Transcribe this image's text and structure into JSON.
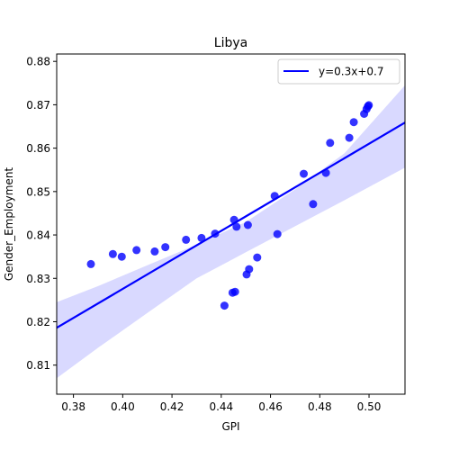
{
  "chart_data": {
    "type": "scatter",
    "title": "Libya",
    "xlabel": "GPI",
    "ylabel": "Gender_Employment",
    "xlim": [
      0.3732,
      0.5146
    ],
    "ylim": [
      0.8033,
      0.8817
    ],
    "xticks": [
      0.38,
      0.4,
      0.42,
      0.44,
      0.46,
      0.48,
      0.5
    ],
    "xtick_labels": [
      "0.38",
      "0.40",
      "0.42",
      "0.44",
      "0.46",
      "0.48",
      "0.50"
    ],
    "yticks": [
      0.81,
      0.82,
      0.83,
      0.84,
      0.85,
      0.86,
      0.87,
      0.88
    ],
    "ytick_labels": [
      "0.81",
      "0.82",
      "0.83",
      "0.84",
      "0.85",
      "0.86",
      "0.87",
      "0.88"
    ],
    "grid": false,
    "legend": {
      "position": "top-right",
      "entries": [
        "y=0.3x+0.7"
      ]
    },
    "colors": {
      "points": "#0000ff",
      "line": "#0000ff",
      "band": "#0000ff"
    },
    "series": [
      {
        "points": [
          [
            0.3871,
            0.8333
          ],
          [
            0.396,
            0.8356
          ],
          [
            0.3996,
            0.835
          ],
          [
            0.4056,
            0.8365
          ],
          [
            0.413,
            0.8362
          ],
          [
            0.4173,
            0.8372
          ],
          [
            0.4257,
            0.8389
          ],
          [
            0.432,
            0.8393
          ],
          [
            0.4375,
            0.8403
          ],
          [
            0.4452,
            0.8435
          ],
          [
            0.4462,
            0.8419
          ],
          [
            0.4508,
            0.8423
          ],
          [
            0.4413,
            0.8237
          ],
          [
            0.4446,
            0.8267
          ],
          [
            0.4456,
            0.8269
          ],
          [
            0.4503,
            0.8309
          ],
          [
            0.4513,
            0.8321
          ],
          [
            0.4546,
            0.8348
          ],
          [
            0.4628,
            0.8402
          ],
          [
            0.4617,
            0.849
          ],
          [
            0.4735,
            0.8541
          ],
          [
            0.4773,
            0.8471
          ],
          [
            0.4825,
            0.8543
          ],
          [
            0.4842,
            0.8612
          ],
          [
            0.492,
            0.8624
          ],
          [
            0.4938,
            0.866
          ],
          [
            0.498,
            0.8679
          ],
          [
            0.499,
            0.869
          ],
          [
            0.4995,
            0.8696
          ],
          [
            0.4999,
            0.8699
          ]
        ]
      }
    ],
    "regression": {
      "label": "y=0.3x+0.7",
      "x": [
        0.3732,
        0.5146
      ],
      "y": [
        0.8186,
        0.8659
      ],
      "ci": {
        "x": [
          0.3732,
          0.39,
          0.41,
          0.43,
          0.45,
          0.47,
          0.49,
          0.5146
        ],
        "lower": [
          0.807,
          0.814,
          0.822,
          0.83,
          0.836,
          0.842,
          0.848,
          0.8555
        ],
        "upper": [
          0.8245,
          0.8282,
          0.833,
          0.8378,
          0.843,
          0.8505,
          0.8588,
          0.8745
        ]
      }
    }
  }
}
